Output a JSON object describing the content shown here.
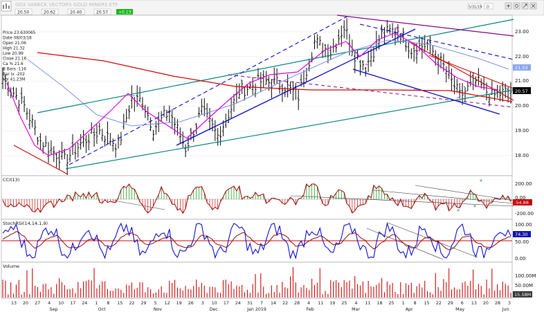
{
  "header": {
    "symbol": "GDX",
    "name": "VANECK VECTORS GOLD MINERS ETF",
    "quote_a": "20.50",
    "quote_b": "20.62",
    "quote_c": "20.40",
    "quote_d": "20.57",
    "change": "+0.13",
    "toolbar_date": "5/31/19",
    "toolbar_interval": "D"
  },
  "info_panel": [
    "Price  23.630065",
    "Date   08/03/18",
    "Open   21.06",
    "High   21.32",
    "Low    20.99",
    "Close  21.16",
    "Ca %   21.6",
    "B Bars -116",
    "Bar Ix -202",
    "Vol    41.23M"
  ],
  "price_panel": {
    "axis_labels": [
      "23.00",
      "22.00",
      "21.00",
      "20.00",
      "19.00",
      "18.00"
    ],
    "last_price_tag": "20.57",
    "ma_tag": "21.53",
    "reversal_marks": [
      {
        "label": "v",
        "x": 0.777,
        "y": 23.05
      },
      {
        "label": "v",
        "x": 0.815,
        "y": 22.15
      },
      {
        "label": "^",
        "x": 0.716,
        "y": 21.55
      },
      {
        "label": "^",
        "x": 0.812,
        "y": 20.55
      },
      {
        "label": "^",
        "x": 0.897,
        "y": 20.2
      }
    ]
  },
  "cci_panel": {
    "title": "CCI(13)",
    "axis_labels": [
      "200.00",
      "0.00",
      "-200.00"
    ],
    "value_tag": "-54.88"
  },
  "stoch_panel": {
    "title": "StochRSI(14,14,1,9)",
    "axis_labels": [
      "100.00",
      "50.00",
      "0.00"
    ],
    "value_tag": "74.30"
  },
  "volume_panel": {
    "title": "Volume",
    "axis_labels": [
      "100.00M",
      "50.00M"
    ],
    "value_tag": "15.58M"
  },
  "x_axis": {
    "day_labels": [
      "13",
      "20",
      "27",
      "4",
      "10",
      "17",
      "24",
      "1",
      "8",
      "15",
      "22",
      "29",
      "5",
      "12",
      "19",
      "26",
      "3",
      "10",
      "17",
      "24",
      "31",
      "7",
      "14",
      "22",
      "28",
      "4",
      "11",
      "19",
      "25",
      "4",
      "11",
      "18",
      "25",
      "1",
      "8",
      "15",
      "22",
      "29",
      "6",
      "13",
      "20",
      "28",
      "3"
    ],
    "month_labels": [
      "Sep",
      "Oct",
      "Nov",
      "Dec",
      "Jan 2019",
      "Feb",
      "Mar",
      "Apr",
      "May",
      "Jun"
    ]
  },
  "colors": {
    "background": "#ffffff",
    "bars": "#000000",
    "red_line": "#cc0000",
    "magenta": "#e000e0",
    "blue": "#0000cc",
    "teal": "#008080",
    "purple": "#800080",
    "light_blue": "#7a8ee8",
    "stoch_blue": "#0a0acc",
    "stoch_red": "#990000",
    "cci_green": "#009000",
    "cci_red": "#d00000",
    "volume_red": "#cc0000",
    "star_teal": "#008888"
  }
}
